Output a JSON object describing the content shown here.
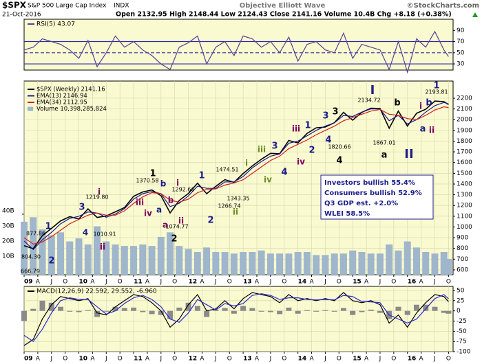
{
  "header": {
    "symbol": "$SPX",
    "name": "S&P 500 Large Cap Index",
    "exchange": "INDX",
    "date": "21-Oct-2016",
    "quote": "Open 2132.95 High 2148.44 Low 2124.43 Close 2141.16 Volume 10.4B Chg +8.18 (+0.38%)",
    "source": "Objective Elliott Wave",
    "copyright": "©StockCharts.com"
  },
  "chart_data": [
    {
      "type": "line",
      "ylim": [
        19,
        110
      ],
      "yticks": [
        30,
        50,
        70,
        90
      ],
      "levels": [
        30,
        70
      ],
      "dashed_levels": [
        50
      ],
      "level_color": "#2a2aa8",
      "series": [
        {
          "name": "RSI(5) 43.07",
          "color": "#5a3d9a",
          "values": [
            55,
            60,
            75,
            70,
            65,
            55,
            40,
            72,
            25,
            50,
            80,
            60,
            70,
            55,
            45,
            30,
            20,
            60,
            68,
            80,
            30,
            60,
            70,
            45,
            80,
            75,
            60,
            70,
            50,
            78,
            35,
            65,
            70,
            55,
            50,
            85,
            40,
            65,
            60,
            55,
            20,
            70,
            15,
            75,
            60,
            88,
            55,
            43.07
          ]
        }
      ]
    },
    {
      "type": "line",
      "grid": true,
      "x": [
        "2009-01",
        "2009-03",
        "2009-05",
        "2009-07",
        "2009-09",
        "2009-11",
        "2010-01",
        "2010-03",
        "2010-05",
        "2010-07",
        "2010-09",
        "2010-11",
        "2011-01",
        "2011-03",
        "2011-05",
        "2011-07",
        "2011-09",
        "2011-11",
        "2012-01",
        "2012-03",
        "2012-05",
        "2012-07",
        "2012-09",
        "2012-11",
        "2013-01",
        "2013-03",
        "2013-05",
        "2013-07",
        "2013-09",
        "2013-11",
        "2014-01",
        "2014-03",
        "2014-05",
        "2014-07",
        "2014-09",
        "2014-11",
        "2015-01",
        "2015-03",
        "2015-05",
        "2015-07",
        "2015-09",
        "2015-11",
        "2016-01",
        "2016-03",
        "2016-05",
        "2016-07",
        "2016-09",
        "2016-10"
      ],
      "xlim": [
        "2009-01",
        "2016-11"
      ],
      "xticks": [
        {
          "value": "2009-01",
          "label": "09"
        },
        {
          "value": "2009-04",
          "label": "A"
        },
        {
          "value": "2009-07",
          "label": "J"
        },
        {
          "value": "2009-10",
          "label": "O"
        },
        {
          "value": "2010-01",
          "label": "10"
        },
        {
          "value": "2010-04",
          "label": "A"
        },
        {
          "value": "2010-07",
          "label": "J"
        },
        {
          "value": "2010-10",
          "label": "O"
        },
        {
          "value": "2011-01",
          "label": "11"
        },
        {
          "value": "2011-04",
          "label": "A"
        },
        {
          "value": "2011-07",
          "label": "J"
        },
        {
          "value": "2011-10",
          "label": "O"
        },
        {
          "value": "2012-01",
          "label": "12"
        },
        {
          "value": "2012-04",
          "label": "A"
        },
        {
          "value": "2012-07",
          "label": "J"
        },
        {
          "value": "2012-10",
          "label": "O"
        },
        {
          "value": "2013-01",
          "label": "13"
        },
        {
          "value": "2013-04",
          "label": "A"
        },
        {
          "value": "2013-07",
          "label": "J"
        },
        {
          "value": "2013-10",
          "label": "O"
        },
        {
          "value": "2014-01",
          "label": "14"
        },
        {
          "value": "2014-04",
          "label": "A"
        },
        {
          "value": "2014-07",
          "label": "J"
        },
        {
          "value": "2014-10",
          "label": "O"
        },
        {
          "value": "2015-01",
          "label": "15"
        },
        {
          "value": "2015-04",
          "label": "A"
        },
        {
          "value": "2015-07",
          "label": "J"
        },
        {
          "value": "2015-10",
          "label": "O"
        },
        {
          "value": "2016-01",
          "label": "16"
        },
        {
          "value": "2016-04",
          "label": "A"
        },
        {
          "value": "2016-07",
          "label": "J"
        },
        {
          "value": "2016-10",
          "label": "O"
        }
      ],
      "ylim": [
        555,
        2360
      ],
      "yticks": [
        600,
        700,
        800,
        900,
        1000,
        1100,
        1200,
        1300,
        1400,
        1500,
        1600,
        1700,
        1800,
        1900,
        2000,
        2100,
        2200
      ],
      "y2lim": [
        0,
        128
      ],
      "y2ticks": [
        {
          "value": 10,
          "label": "10B"
        },
        {
          "value": 20,
          "label": "20B"
        },
        {
          "value": 30,
          "label": "30B"
        },
        {
          "value": 40,
          "label": "40B"
        }
      ],
      "series": [
        {
          "name": "Volume 10,398,285,824",
          "type": "bar",
          "axis": "y2",
          "color": "#9fb6cc",
          "values": [
            35,
            38,
            30,
            26,
            28,
            22,
            24,
            20,
            32,
            22,
            20,
            19,
            19,
            20,
            19,
            25,
            28,
            19,
            17,
            15,
            18,
            15,
            15,
            14,
            15,
            15,
            16,
            14,
            14,
            14,
            15,
            15,
            13,
            13,
            14,
            14,
            16,
            15,
            14,
            14,
            20,
            16,
            22,
            18,
            15,
            14,
            15,
            10.4
          ]
        },
        {
          "name": "$SPX (Weekly) 2141.16",
          "color": "#000000",
          "values": [
            826,
            798,
            919,
            987,
            1057,
            1096,
            1074,
            1169,
            1089,
            1102,
            1141,
            1181,
            1286,
            1326,
            1345,
            1292,
            1131,
            1247,
            1312,
            1408,
            1310,
            1379,
            1441,
            1416,
            1498,
            1569,
            1631,
            1686,
            1682,
            1806,
            1783,
            1872,
            1924,
            1931,
            1972,
            2068,
            1995,
            2068,
            2107,
            2104,
            1920,
            2080,
            1940,
            2060,
            2097,
            2174,
            2168,
            2141.16
          ]
        },
        {
          "name": "EMA(13) 2146.94",
          "color": "#1c1c8c",
          "values": [
            870,
            790,
            880,
            950,
            1030,
            1080,
            1100,
            1140,
            1130,
            1090,
            1120,
            1170,
            1260,
            1310,
            1330,
            1310,
            1190,
            1220,
            1290,
            1380,
            1360,
            1360,
            1420,
            1420,
            1470,
            1550,
            1610,
            1660,
            1680,
            1780,
            1800,
            1850,
            1900,
            1940,
            1970,
            2040,
            2030,
            2070,
            2100,
            2100,
            1990,
            2040,
            1960,
            2000,
            2070,
            2130,
            2160,
            2146.94
          ]
        },
        {
          "name": "EMA(34) 2112.95",
          "color": "#d02020",
          "values": [
            900,
            840,
            860,
            910,
            970,
            1030,
            1070,
            1110,
            1130,
            1110,
            1110,
            1150,
            1220,
            1280,
            1320,
            1310,
            1250,
            1230,
            1260,
            1320,
            1350,
            1355,
            1390,
            1410,
            1440,
            1500,
            1560,
            1620,
            1660,
            1730,
            1770,
            1810,
            1860,
            1900,
            1940,
            1990,
            2020,
            2050,
            2080,
            2095,
            2050,
            2040,
            2010,
            2000,
            2040,
            2090,
            2120,
            2112.95
          ]
        }
      ],
      "notes": [
        "Investors bullish 55.4%",
        "Consumers bullish 52.9%",
        "Q3 GDP est. +2.0%",
        "WLEI 58.5%"
      ],
      "annotations": [
        {
          "text": "877.86",
          "color": "#000000"
        },
        {
          "text": "804.30",
          "color": "#000000"
        },
        {
          "text": "666.79",
          "color": "#000000"
        },
        {
          "text": "1219.80",
          "color": "#000000"
        },
        {
          "text": "1010.91",
          "color": "#000000"
        },
        {
          "text": "1370.58",
          "color": "#000000"
        },
        {
          "text": "1292.66",
          "color": "#000000"
        },
        {
          "text": "1074.77",
          "color": "#000000"
        },
        {
          "text": "1474.51",
          "color": "#000000"
        },
        {
          "text": "1266.74",
          "color": "#000000"
        },
        {
          "text": "1343.35",
          "color": "#000000"
        },
        {
          "text": "1820.66",
          "color": "#000000"
        },
        {
          "text": "2134.72",
          "color": "#000000"
        },
        {
          "text": "1867.01",
          "color": "#000000"
        },
        {
          "text": "2193.81",
          "color": "#000000"
        },
        {
          "text": "1",
          "color": "#1c1c8c"
        },
        {
          "text": "2",
          "color": "#1c1c8c"
        },
        {
          "text": "3",
          "color": "#1c1c8c"
        },
        {
          "text": "4",
          "color": "#1c1c8c"
        },
        {
          "text": "i",
          "color": "#800060"
        },
        {
          "text": "ii",
          "color": "#800060"
        },
        {
          "text": "iii",
          "color": "#800060"
        },
        {
          "text": "iv",
          "color": "#800060"
        },
        {
          "text": "1",
          "color": "#000000"
        },
        {
          "text": "b",
          "color": "#1c1c8c"
        },
        {
          "text": "a",
          "color": "#1c1c8c"
        },
        {
          "text": "a",
          "color": "#800060"
        },
        {
          "text": "b",
          "color": "#800060"
        },
        {
          "text": "2",
          "color": "#000000"
        },
        {
          "text": "i",
          "color": "#800060"
        },
        {
          "text": "ii",
          "color": "#800060"
        },
        {
          "text": "1",
          "color": "#1c1c8c"
        },
        {
          "text": "2",
          "color": "#1c1c8c"
        },
        {
          "text": "i",
          "color": "#6b8e23"
        },
        {
          "text": "ii",
          "color": "#6b8e23"
        },
        {
          "text": "iii",
          "color": "#6b8e23"
        },
        {
          "text": "iv",
          "color": "#6b8e23"
        },
        {
          "text": "3",
          "color": "#1c1c8c"
        },
        {
          "text": "4",
          "color": "#1c1c8c"
        },
        {
          "text": "iii",
          "color": "#800060"
        },
        {
          "text": "iv",
          "color": "#800060"
        },
        {
          "text": "1",
          "color": "#1c1c8c"
        },
        {
          "text": "2",
          "color": "#1c1c8c"
        },
        {
          "text": "3",
          "color": "#1c1c8c"
        },
        {
          "text": "3",
          "color": "#000000"
        },
        {
          "text": "4",
          "color": "#1c1c8c"
        },
        {
          "text": "4",
          "color": "#000000"
        },
        {
          "text": "I",
          "color": "#1c1c8c"
        },
        {
          "text": "b",
          "color": "#000000"
        },
        {
          "text": "a",
          "color": "#000000"
        },
        {
          "text": "II",
          "color": "#1c1c8c"
        },
        {
          "text": "i",
          "color": "#800060"
        },
        {
          "text": "b",
          "color": "#1c1c8c"
        },
        {
          "text": "a",
          "color": "#1c1c8c"
        },
        {
          "text": "ii",
          "color": "#800060"
        },
        {
          "text": "1",
          "color": "#1c1c8c"
        }
      ]
    },
    {
      "type": "line",
      "title": "MACD(12,26,9) 22.592, 29.552, -6.960",
      "grid": true,
      "xticks": [
        {
          "value": "2009-01",
          "label": "09"
        },
        {
          "value": "2009-04",
          "label": "A"
        },
        {
          "value": "2009-07",
          "label": "J"
        },
        {
          "value": "2009-10",
          "label": "O"
        },
        {
          "value": "2010-01",
          "label": "10"
        },
        {
          "value": "2010-04",
          "label": "A"
        },
        {
          "value": "2010-07",
          "label": "J"
        },
        {
          "value": "2010-10",
          "label": "O"
        },
        {
          "value": "2011-01",
          "label": "11"
        },
        {
          "value": "2011-04",
          "label": "A"
        },
        {
          "value": "2011-07",
          "label": "J"
        },
        {
          "value": "2011-10",
          "label": "O"
        },
        {
          "value": "2012-01",
          "label": "12"
        },
        {
          "value": "2012-04",
          "label": "A"
        },
        {
          "value": "2012-07",
          "label": "J"
        },
        {
          "value": "2012-10",
          "label": "O"
        },
        {
          "value": "2013-01",
          "label": "13"
        },
        {
          "value": "2013-04",
          "label": "A"
        },
        {
          "value": "2013-07",
          "label": "J"
        },
        {
          "value": "2013-10",
          "label": "O"
        },
        {
          "value": "2014-01",
          "label": "14"
        },
        {
          "value": "2014-04",
          "label": "A"
        },
        {
          "value": "2014-07",
          "label": "J"
        },
        {
          "value": "2014-10",
          "label": "O"
        },
        {
          "value": "2015-01",
          "label": "15"
        },
        {
          "value": "2015-04",
          "label": "A"
        },
        {
          "value": "2015-07",
          "label": "J"
        },
        {
          "value": "2015-10",
          "label": "O"
        },
        {
          "value": "2016-01",
          "label": "16"
        },
        {
          "value": "2016-04",
          "label": "A"
        },
        {
          "value": "2016-07",
          "label": "J"
        },
        {
          "value": "2016-10",
          "label": "O"
        }
      ],
      "ylim": [
        -100,
        60
      ],
      "yticks": [
        -100,
        -75,
        -50,
        -25,
        0,
        25,
        50
      ],
      "series": [
        {
          "type": "bar",
          "color": "#8a8a8a",
          "values": [
            -25,
            5,
            25,
            20,
            10,
            -2,
            -3,
            2,
            -15,
            -2,
            10,
            7,
            8,
            -3,
            -8,
            -10,
            -20,
            8,
            20,
            12,
            -15,
            3,
            7,
            -7,
            12,
            7,
            -2,
            -3,
            -8,
            8,
            -7,
            2,
            -2,
            2,
            -2,
            7,
            -10,
            -3,
            3,
            -5,
            -20,
            10,
            -10,
            15,
            15,
            10,
            -5,
            -6.96
          ]
        },
        {
          "color": "#000000",
          "values": [
            -85,
            -70,
            -20,
            15,
            35,
            30,
            25,
            30,
            -5,
            -10,
            10,
            25,
            40,
            35,
            20,
            0,
            -40,
            -20,
            15,
            40,
            0,
            5,
            25,
            5,
            30,
            45,
            40,
            35,
            20,
            40,
            25,
            30,
            25,
            30,
            25,
            45,
            25,
            20,
            25,
            15,
            -30,
            -10,
            -40,
            -5,
            20,
            40,
            35,
            22.592
          ]
        },
        {
          "color": "#2a2ad0",
          "values": [
            -60,
            -75,
            -45,
            -5,
            25,
            32,
            28,
            28,
            10,
            -8,
            0,
            18,
            32,
            38,
            28,
            10,
            -20,
            -28,
            -5,
            28,
            15,
            2,
            18,
            12,
            18,
            38,
            42,
            38,
            28,
            32,
            32,
            28,
            27,
            28,
            27,
            38,
            35,
            23,
            22,
            20,
            -10,
            -20,
            -30,
            -20,
            5,
            30,
            40,
            29.552
          ]
        }
      ]
    }
  ]
}
